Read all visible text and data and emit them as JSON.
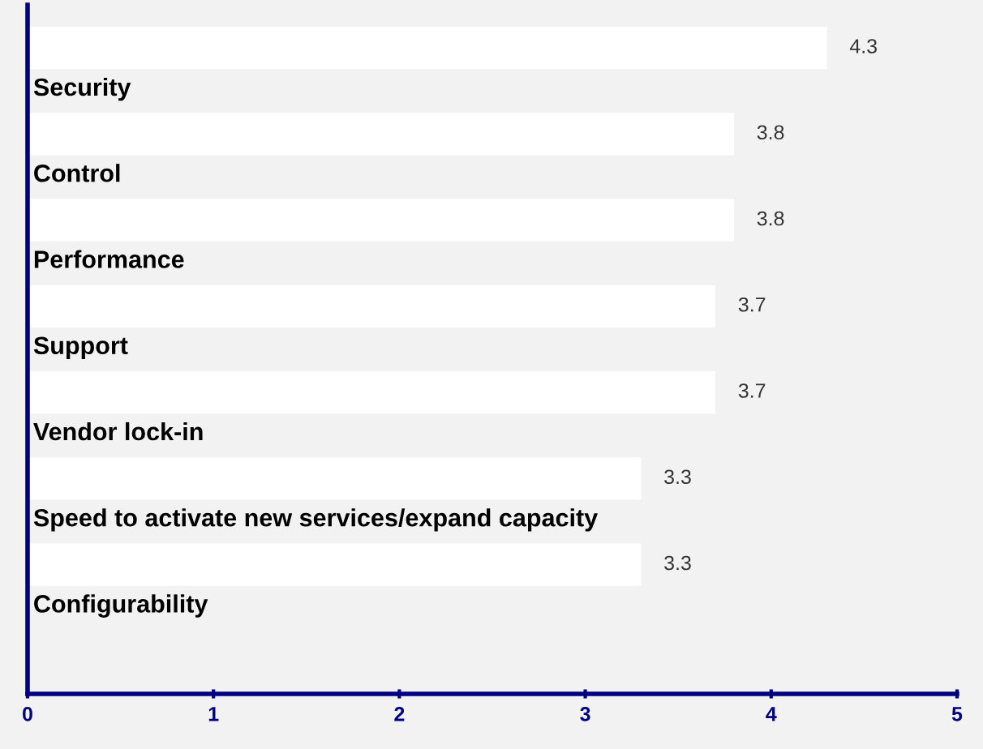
{
  "chart_data": {
    "type": "bar",
    "orientation": "horizontal",
    "categories": [
      "Security",
      "Control",
      "Performance",
      "Support",
      "Vendor lock-in",
      "Speed to activate new services/expand capacity",
      "Configurability"
    ],
    "values": [
      4.3,
      3.8,
      3.8,
      3.7,
      3.7,
      3.3,
      3.3
    ],
    "color": "#ffffff",
    "xlim": [
      0,
      5
    ],
    "xticks": [
      0,
      1,
      2,
      3,
      4,
      5
    ],
    "tick_labels": "x",
    "grid": false,
    "legend": false,
    "data_labels": true
  }
}
